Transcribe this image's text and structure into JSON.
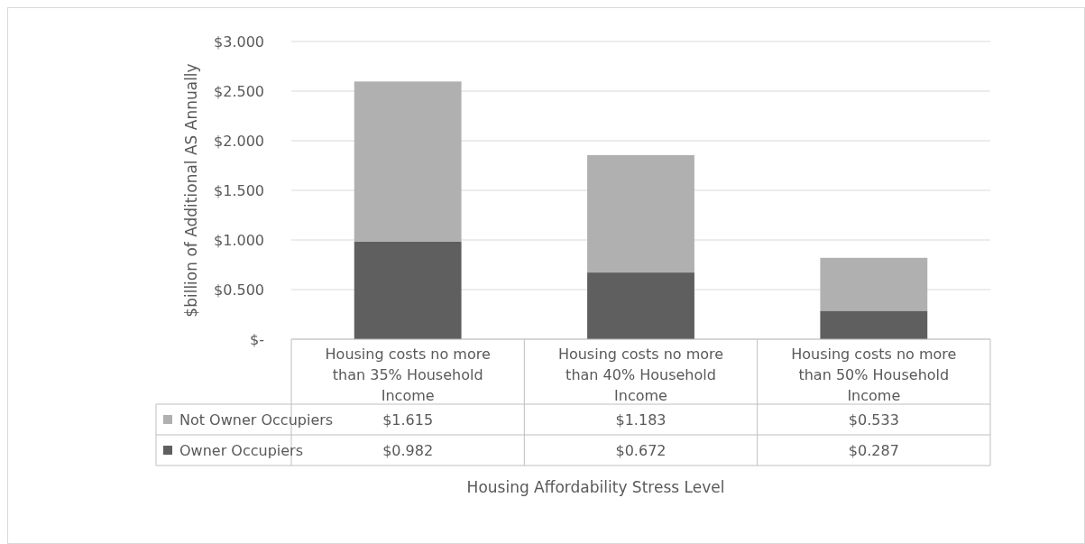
{
  "chart_data": {
    "type": "bar",
    "stacked": true,
    "xlabel": "Housing Affordability Stress Level",
    "ylabel": "$billion of Additional AS Annually",
    "categories": [
      "Housing costs no more than 35% Household Income",
      "Housing costs no more than 40% Household Income",
      "Housing costs no more than 50% Household Income"
    ],
    "series": [
      {
        "name": "Owner Occupiers",
        "color": "#5f5f5f",
        "values": [
          0.982,
          0.672,
          0.287
        ],
        "value_labels": [
          "$0.982",
          "$0.672",
          "$0.287"
        ]
      },
      {
        "name": "Not Owner Occupiers",
        "color": "#b0b0b0",
        "values": [
          1.615,
          1.183,
          0.533
        ],
        "value_labels": [
          "$1.615",
          "$1.183",
          "$0.533"
        ]
      }
    ],
    "ylim": [
      0,
      3
    ],
    "yticks": [
      {
        "value": 0,
        "label": "$-"
      },
      {
        "value": 0.5,
        "label": "$0.500"
      },
      {
        "value": 1,
        "label": "$1.000"
      },
      {
        "value": 1.5,
        "label": "$1.500"
      },
      {
        "value": 2,
        "label": "$2.000"
      },
      {
        "value": 2.5,
        "label": "$2.500"
      },
      {
        "value": 3,
        "label": "$3.000"
      }
    ],
    "grid": "y",
    "legend": "bottom"
  }
}
